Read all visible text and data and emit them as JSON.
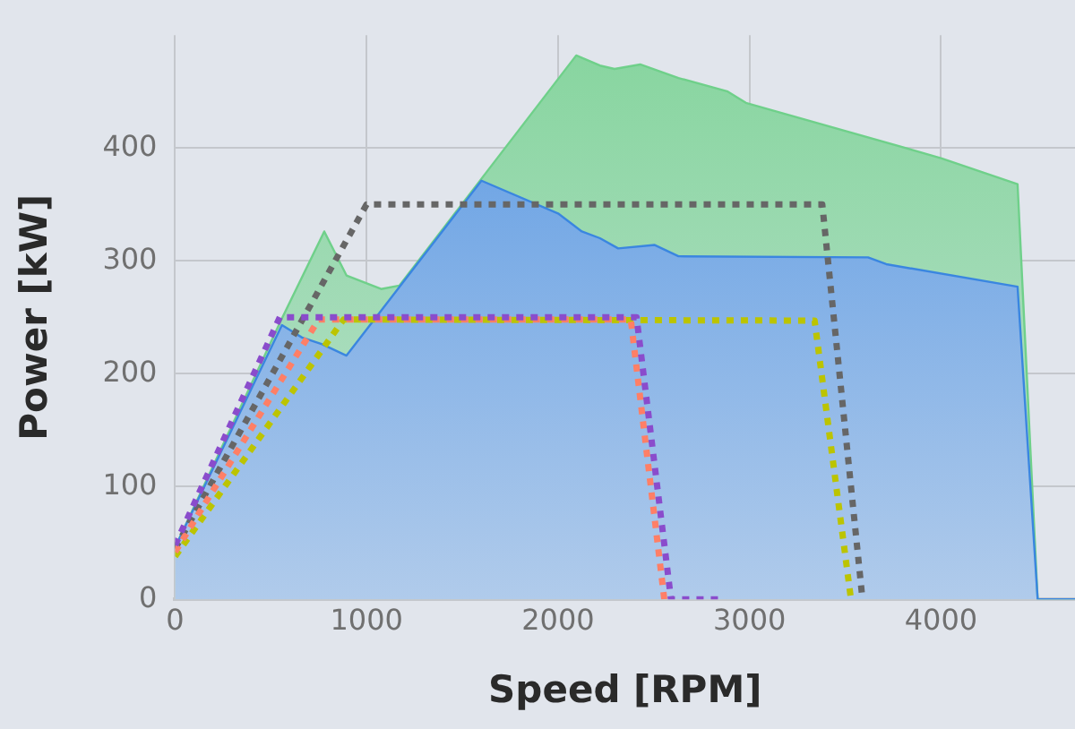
{
  "chart_data": {
    "type": "line",
    "xlabel": "Speed [RPM]",
    "ylabel": "Power [kW]",
    "xlim": [
      0,
      4700
    ],
    "ylim": [
      0,
      500
    ],
    "xticks": [
      0,
      1000,
      2000,
      3000,
      4000
    ],
    "yticks": [
      0,
      100,
      200,
      300,
      400
    ],
    "grid": true,
    "legend": false,
    "marker": "none",
    "series": [
      {
        "type": "line",
        "line_style": "dotted",
        "color": "#8a4ccc",
        "x": [
          0,
          547,
          2410,
          2590,
          2867
        ],
        "values": [
          48,
          250,
          250,
          0,
          0
        ]
      },
      {
        "type": "line",
        "line_style": "dotted",
        "color": "#ff7f66",
        "x": [
          0,
          750,
          2380,
          2555
        ],
        "values": [
          42,
          248,
          248,
          0
        ]
      },
      {
        "type": "line",
        "line_style": "dotted",
        "color": "#bcc400",
        "x": [
          0,
          880,
          3340,
          3530
        ],
        "values": [
          38,
          248,
          247,
          0
        ]
      },
      {
        "type": "line",
        "line_style": "dotted",
        "color": "#666666",
        "x": [
          0,
          1000,
          3380,
          3590
        ],
        "values": [
          45,
          350,
          350,
          0
        ]
      },
      {
        "type": "area",
        "color": "#3a86e0",
        "x": [
          0,
          558,
          663,
          768,
          895,
          1600,
          2000,
          2124,
          2219,
          2314,
          2505,
          2629,
          3619,
          3714,
          4400,
          4505,
          4700
        ],
        "values": [
          46,
          243,
          232,
          226,
          216,
          371,
          342,
          326,
          320,
          311,
          314,
          304,
          303,
          297,
          277,
          0,
          0
        ]
      },
      {
        "type": "area",
        "color": "#6fd08a",
        "x": [
          0,
          558,
          779,
          895,
          1076,
          1171,
          2095,
          2219,
          2295,
          2429,
          2629,
          2886,
          2981,
          4000,
          4400,
          4505,
          4700
        ],
        "values": [
          46,
          249,
          326,
          287,
          275,
          278,
          482,
          473,
          470,
          474,
          462,
          450,
          440,
          391,
          368,
          0,
          0
        ]
      }
    ]
  }
}
